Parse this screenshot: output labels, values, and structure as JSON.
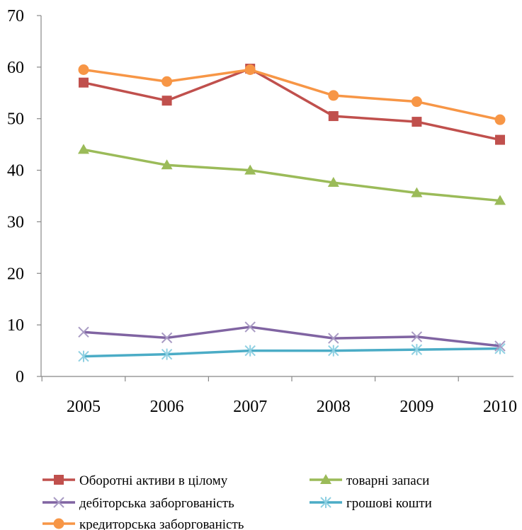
{
  "chart_data": {
    "type": "line",
    "x": [
      "2005",
      "2006",
      "2007",
      "2008",
      "2009",
      "2010"
    ],
    "ylim": [
      0,
      70
    ],
    "yticks": [
      "0",
      "10",
      "20",
      "30",
      "40",
      "50",
      "60",
      "70"
    ],
    "grid": false,
    "legend_position": "bottom",
    "series": [
      {
        "name": "Оборотні активи в цілому",
        "marker": "square",
        "color": "#C0504D",
        "values": [
          57.0,
          53.5,
          59.7,
          50.5,
          49.4,
          45.9
        ]
      },
      {
        "name": "товарні запаси",
        "marker": "triangle",
        "color": "#9BBB59",
        "values": [
          44.0,
          41.0,
          40.0,
          37.6,
          35.6,
          34.1
        ]
      },
      {
        "name": "дебіторська заборгованість",
        "marker": "x",
        "color": "#8064A2",
        "values": [
          8.6,
          7.5,
          9.6,
          7.4,
          7.7,
          5.9
        ]
      },
      {
        "name": "грошові кошти",
        "marker": "star",
        "color": "#4BACC6",
        "values": [
          3.9,
          4.3,
          5.0,
          5.0,
          5.2,
          5.4
        ]
      },
      {
        "name": "кредиторська заборгованість",
        "marker": "circle",
        "color": "#F79646",
        "values": [
          59.5,
          57.2,
          59.5,
          54.5,
          53.3,
          49.8
        ]
      }
    ]
  }
}
